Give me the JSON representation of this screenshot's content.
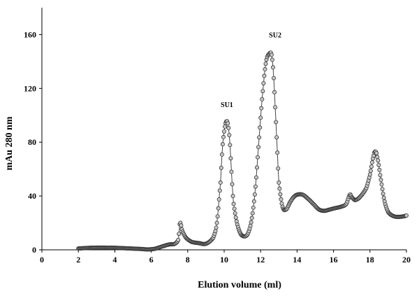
{
  "chart_data": {
    "type": "scatter",
    "xlabel": "Elution volume (ml)",
    "ylabel": "mAu 280 nm",
    "xlim": [
      0,
      20
    ],
    "ylim": [
      0,
      180
    ],
    "xticks": [
      0,
      2,
      4,
      6,
      8,
      10,
      12,
      14,
      16,
      18,
      20
    ],
    "yticks": [
      0,
      40,
      80,
      120,
      160
    ],
    "grid": false,
    "annotations": [
      {
        "text": "SU1",
        "x": 10.15,
        "y": 106
      },
      {
        "text": "SU2",
        "x": 12.8,
        "y": 158
      }
    ],
    "series": [
      {
        "x": [
          2.0,
          2.5,
          3.0,
          3.5,
          4.0,
          4.5,
          5.0,
          5.5,
          5.8,
          6.2,
          6.6,
          7.0,
          7.3,
          7.5,
          7.55,
          7.6,
          7.7,
          7.9,
          8.2,
          8.6,
          9.0,
          9.4,
          9.6,
          9.8,
          9.9,
          10.0,
          10.1,
          10.2,
          10.3,
          10.4,
          10.5,
          10.7,
          10.9,
          11.1,
          11.3,
          11.5,
          11.7,
          11.9,
          12.1,
          12.3,
          12.5,
          12.6,
          12.7,
          12.8,
          12.9,
          13.0,
          13.2,
          13.4,
          13.6,
          13.8,
          14.0,
          14.3,
          14.6,
          14.9,
          15.2,
          15.5,
          15.8,
          16.1,
          16.4,
          16.7,
          16.9,
          17.0,
          17.2,
          17.5,
          17.8,
          18.0,
          18.2,
          18.3,
          18.4,
          18.6,
          18.8,
          19.0,
          19.3,
          19.6,
          19.9,
          20.0
        ],
        "y": [
          1,
          1.4,
          1.6,
          1.6,
          1.5,
          1.2,
          0.9,
          0.6,
          0.3,
          0.8,
          2.5,
          4.0,
          4.5,
          8.0,
          18,
          20,
          14,
          9,
          6,
          5,
          4.5,
          9,
          20,
          50,
          75,
          88,
          95,
          94,
          82,
          58,
          36,
          20,
          12,
          10,
          12,
          22,
          44,
          80,
          115,
          140,
          146,
          145,
          132,
          106,
          78,
          50,
          32,
          30,
          35,
          39,
          41,
          41,
          38,
          34,
          30,
          29,
          30,
          31,
          32,
          34,
          41,
          39,
          37,
          40,
          46,
          56,
          70,
          73,
          69,
          52,
          36,
          28,
          25,
          24.5,
          25,
          25.5
        ]
      }
    ]
  }
}
